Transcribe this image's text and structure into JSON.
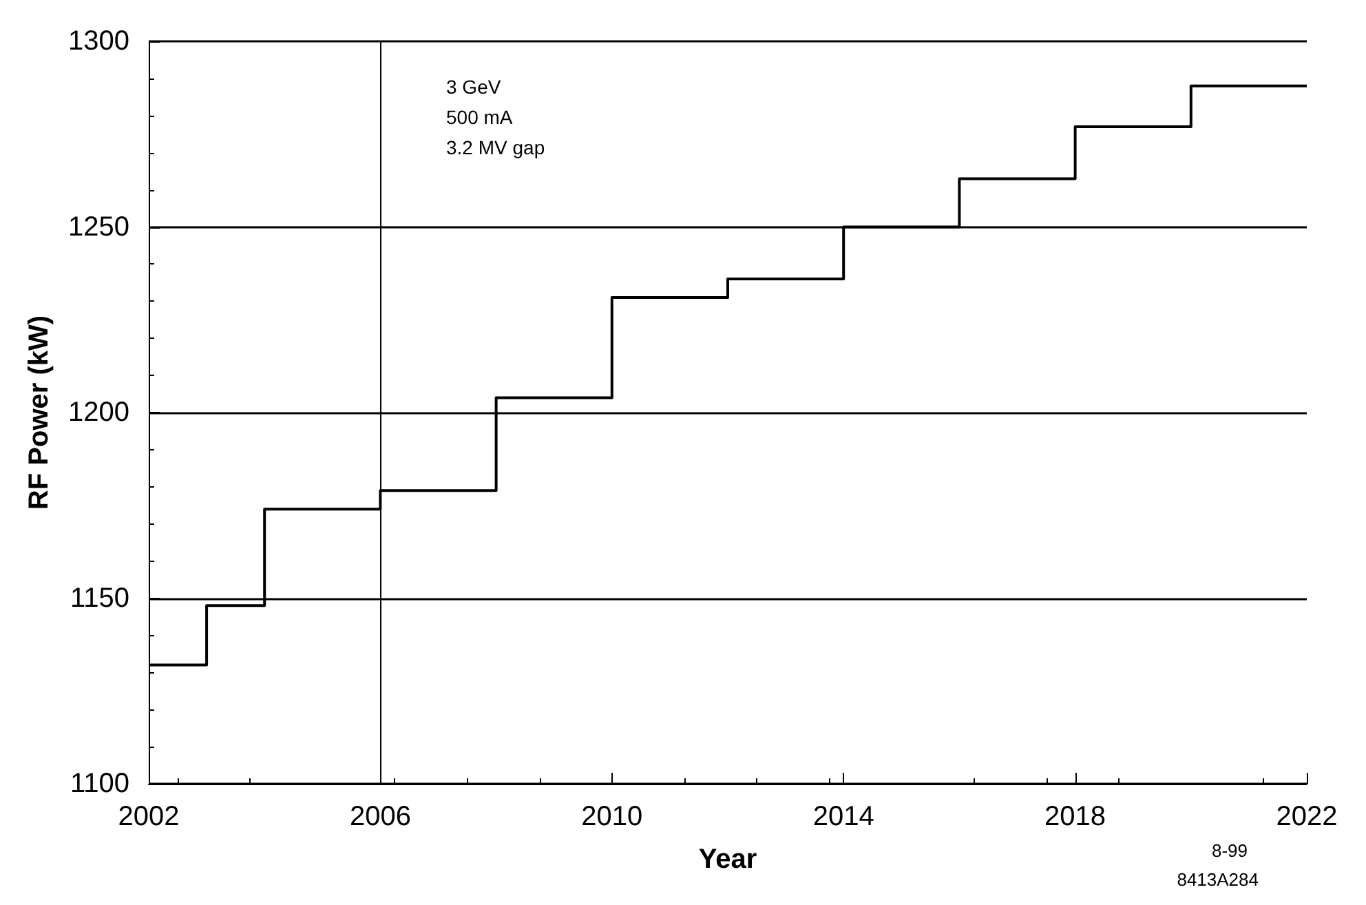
{
  "chart_data": {
    "type": "step",
    "xlabel": "Year",
    "ylabel": "RF Power (kW)",
    "x": [
      2002,
      2003,
      2004,
      2006,
      2008,
      2010,
      2012,
      2014,
      2016,
      2018,
      2020,
      2022
    ],
    "series": [
      {
        "color": "#000000",
        "values": [
          1132,
          1148,
          1174,
          1179,
          1204,
          1231,
          1236,
          1250,
          1263,
          1277,
          1288,
          1288
        ]
      }
    ],
    "xlim": [
      2002,
      2022
    ],
    "xticks": [
      2002,
      2006,
      2010,
      2014,
      2018,
      2022
    ],
    "ylim": [
      1100,
      1300
    ],
    "yticks": [
      1100,
      1150,
      1200,
      1250,
      1300
    ],
    "grid": "y",
    "marker": "none",
    "line_style": "solid",
    "ref_lines": [
      {
        "axis": "x",
        "value": 2006,
        "label": null,
        "color": "#000000"
      }
    ],
    "annotations": [
      "3 GeV",
      "500 mA",
      "3.2 MV gap",
      "8-99",
      "8413A284"
    ]
  }
}
